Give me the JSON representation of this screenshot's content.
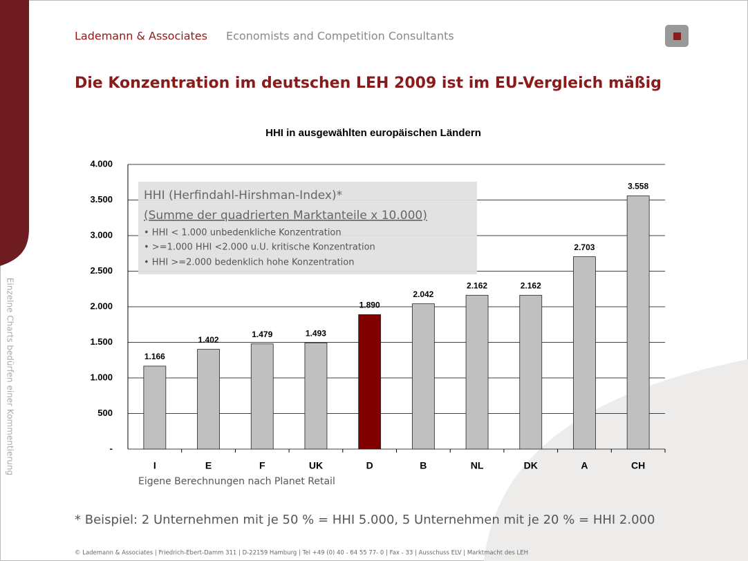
{
  "header": {
    "company": "Lademann & Associates",
    "tagline": "Economists and Competition Consultants"
  },
  "title": "Die Konzentration im deutschen LEH 2009 ist im EU-Vergleich mäßig",
  "chart_data": {
    "type": "bar",
    "title": "HHI in ausgewählten europäischen Ländern",
    "categories": [
      "I",
      "E",
      "F",
      "UK",
      "D",
      "B",
      "NL",
      "DK",
      "A",
      "CH"
    ],
    "values": [
      1166,
      1402,
      1479,
      1493,
      1890,
      2042,
      2162,
      2162,
      2703,
      3558
    ],
    "value_labels": [
      "1.166",
      "1.402",
      "1.479",
      "1.493",
      "1.890",
      "2.042",
      "2.162",
      "2.162",
      "2.703",
      "3.558"
    ],
    "colors": [
      "#c0c0c0",
      "#c0c0c0",
      "#c0c0c0",
      "#c0c0c0",
      "#800000",
      "#c0c0c0",
      "#c0c0c0",
      "#c0c0c0",
      "#c0c0c0",
      "#c0c0c0"
    ],
    "ylim": [
      0,
      4000
    ],
    "yticks": [
      {
        "value": 0,
        "label": "-"
      },
      500,
      {
        "value": 1000,
        "label": "1.000"
      },
      {
        "value": 1500,
        "label": "1.500"
      },
      {
        "value": 2000,
        "label": "2.000"
      },
      {
        "value": 2500,
        "label": "2.500"
      },
      {
        "value": 3000,
        "label": "3.000"
      },
      {
        "value": 3500,
        "label": "3.500"
      },
      {
        "value": 4000,
        "label": "4.000"
      }
    ],
    "grid": true,
    "annotation": {
      "heading": "HHI (Herfindahl-Hirshman-Index)*",
      "subheading": "(Summe der quadrierten Marktanteile x 10.000)",
      "items": [
        "• HHI < 1.000 unbedenkliche Konzentration",
        "• >=1.000 HHI <2.000 u.U. kritische Konzentration",
        "• HHI >=2.000 bedenklich hohe Konzentration"
      ]
    },
    "source": "Eigene Berechnungen nach Planet Retail"
  },
  "footnote": "* Beispiel: 2 Unternehmen mit je 50 % = HHI 5.000, 5 Unternehmen mit je 20 % = HHI 2.000",
  "footer": "© Lademann & Associates | Friedrich-Ebert-Damm 311 | D-22159 Hamburg | Tel +49 (0) 40 - 64 55 77- 0 | Fax  - 33 | Ausschuss ELV | Marktmacht des LEH",
  "side_note": "Einzelne Charts bedürfen einer Kommentierung"
}
